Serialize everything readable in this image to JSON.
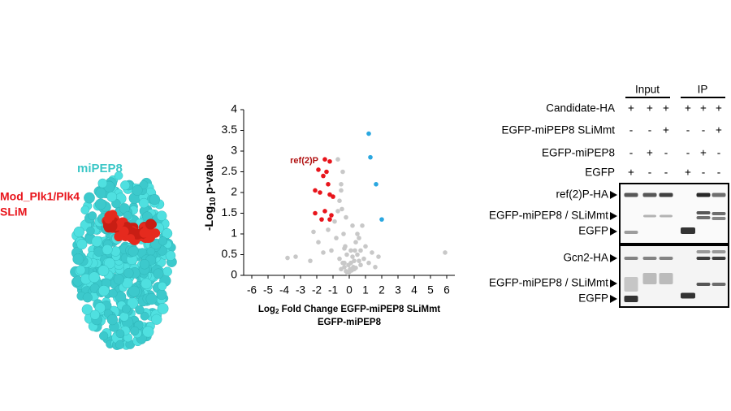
{
  "structure": {
    "protein_label": "miPEP8",
    "motif_label_lines": [
      "Mod_Plk1/Plk4",
      "SLiM"
    ]
  },
  "chart_data": {
    "type": "scatter",
    "y_label": {
      "prefix": "-Log",
      "subscript": "10",
      "suffix": " p-value"
    },
    "x_label": {
      "prefix": "Log",
      "subscript": "2",
      "suffix": " Fold Change EGFP-miPEP8 SLiMmt",
      "line2": "EGFP-miPEP8"
    },
    "annotation": "ref(2)P",
    "xlim": [
      -6.5,
      6.5
    ],
    "ylim": [
      0,
      4
    ],
    "xticks": [
      -6,
      -5,
      -4,
      -3,
      -2,
      -1,
      0,
      1,
      2,
      3,
      4,
      5,
      6
    ],
    "yticks": [
      0,
      0.5,
      1,
      1.5,
      2,
      2.5,
      3,
      3.5,
      4
    ],
    "series": [
      {
        "color": "#c8c8c8",
        "x": [
          -3.8,
          -3.3,
          -2.4,
          -2.2,
          -1.9,
          -1.6,
          -1.3,
          -1.1,
          -0.9,
          -0.8,
          -0.7,
          -0.6,
          -0.5,
          -0.45,
          -0.4,
          -0.35,
          -0.3,
          -0.25,
          -0.2,
          -0.15,
          -0.1,
          -0.05,
          0,
          0.05,
          0.1,
          0.15,
          0.2,
          0.25,
          0.3,
          0.35,
          0.4,
          0.5,
          0.6,
          0.7,
          0.8,
          0.9,
          1.0,
          1.2,
          1.4,
          1.6,
          1.8,
          -0.6,
          -0.4,
          -0.2,
          0.2,
          0.4,
          0.6,
          -0.5,
          0.5,
          -0.3,
          0.3,
          -0.7,
          0.7,
          5.9,
          -0.5,
          -0.3,
          0.1
        ],
        "values": [
          0.42,
          0.45,
          0.35,
          1.05,
          0.8,
          0.55,
          1.1,
          0.6,
          1.3,
          0.9,
          2.8,
          0.4,
          2.2,
          1.6,
          0.3,
          1.0,
          0.2,
          0.7,
          0.1,
          0.5,
          0.05,
          0.25,
          0.08,
          0.15,
          0.3,
          0.12,
          0.45,
          0.2,
          0.35,
          0.6,
          0.18,
          0.5,
          0.9,
          0.25,
          1.2,
          0.4,
          0.7,
          0.3,
          0.55,
          0.2,
          0.45,
          1.8,
          2.5,
          1.4,
          1.2,
          0.8,
          0.35,
          2.05,
          1.0,
          0.65,
          0.15,
          1.55,
          0.6,
          0.55,
          0.15,
          0.3,
          0.6
        ]
      },
      {
        "color": "#e8141b",
        "x": [
          -1.5,
          -1.2,
          -1.9,
          -1.6,
          -1.4,
          -1.3,
          -2.1,
          -1.8,
          -1.2,
          -1.0,
          -2.1,
          -1.5,
          -1.1,
          -1.7,
          -1.2
        ],
        "values": [
          2.8,
          2.75,
          2.55,
          2.4,
          2.5,
          2.2,
          2.05,
          2.0,
          1.95,
          1.9,
          1.5,
          1.55,
          1.45,
          1.35,
          1.35
        ]
      },
      {
        "color": "#2aa7e0",
        "x": [
          1.2,
          1.3,
          1.65,
          2.0
        ],
        "values": [
          3.42,
          2.85,
          2.2,
          1.35
        ]
      }
    ]
  },
  "blot": {
    "group_headers": [
      "Input",
      "IP"
    ],
    "conditions": [
      {
        "label": "Candidate-HA",
        "signs": [
          "+",
          "+",
          "+",
          "+",
          "+",
          "+"
        ]
      },
      {
        "label": "EGFP-miPEP8 SLiMmt",
        "signs": [
          "-",
          "-",
          "+",
          "-",
          "-",
          "+"
        ]
      },
      {
        "label": "EGFP-miPEP8",
        "signs": [
          "-",
          "+",
          "-",
          "-",
          "+",
          "-"
        ]
      },
      {
        "label": "EGFP",
        "signs": [
          "+",
          "-",
          "-",
          "+",
          "-",
          "-"
        ]
      }
    ],
    "markers": [
      "ref(2)P-HA",
      "EGFP-miPEP8 / SLiMmt",
      "EGFP",
      "Gcn2-HA",
      "EGFP-miPEP8 / SLiMmt",
      "EGFP"
    ]
  }
}
